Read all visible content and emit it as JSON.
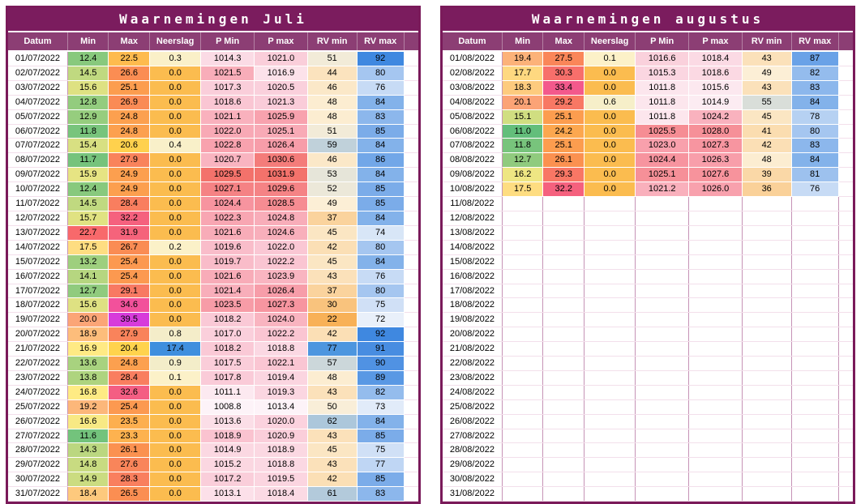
{
  "colors": {
    "frame": "#7A1A5A",
    "title_bg": "#7B1C5E",
    "header_bg": "#8C3E74",
    "header_text": "#FFFFFF",
    "cell_text": "#000000",
    "grid_h": "#F3DFEB",
    "grid_v": "#C693B6"
  },
  "scales": {
    "min": {
      "domain": [
        11.0,
        22.7
      ],
      "stops": [
        [
          0,
          "#63BE7B"
        ],
        [
          0.5,
          "#FFEB84"
        ],
        [
          1,
          "#F8696B"
        ]
      ]
    },
    "max": {
      "domain": [
        20.4,
        39.5
      ],
      "stops": [
        [
          0,
          "#FFD34D"
        ],
        [
          0.3,
          "#FB9150"
        ],
        [
          0.55,
          "#F66A6F"
        ],
        [
          0.75,
          "#F2509C"
        ],
        [
          1,
          "#D73BDB"
        ]
      ]
    },
    "neerslag": {
      "domain": [
        0,
        17.4
      ],
      "zero": "#FBBC4F",
      "stops": [
        [
          0,
          "#FDF2C8"
        ],
        [
          1,
          "#3F8FDE"
        ]
      ]
    },
    "pmin": {
      "domain": [
        1008.8,
        1029.5
      ],
      "stops": [
        [
          0,
          "#FDF3F8"
        ],
        [
          0.45,
          "#FACAD7"
        ],
        [
          0.75,
          "#F795A0"
        ],
        [
          1,
          "#F3726B"
        ]
      ]
    },
    "pmax": {
      "domain": [
        1013.4,
        1031.9
      ],
      "stops": [
        [
          0,
          "#FDF3F8"
        ],
        [
          0.45,
          "#FACAD7"
        ],
        [
          0.75,
          "#F795A0"
        ],
        [
          1,
          "#F3726B"
        ]
      ]
    },
    "rvmin": {
      "domain": [
        22,
        77
      ],
      "stops": [
        [
          0,
          "#F8B157"
        ],
        [
          0.5,
          "#FCF0D8"
        ],
        [
          1,
          "#4D96DF"
        ]
      ]
    },
    "rvmax": {
      "domain": [
        72,
        92
      ],
      "stops": [
        [
          0,
          "#E9F0FA"
        ],
        [
          1,
          "#3F88E0"
        ]
      ]
    }
  },
  "tables": [
    {
      "title": "Waarnemingen Juli",
      "columns": [
        "Datum",
        "Min",
        "Max",
        "Neerslag",
        "P Min",
        "P max",
        "RV min",
        "RV max"
      ],
      "rows": [
        [
          "01/07/2022",
          "12.4",
          "22.5",
          "0.3",
          "1014.3",
          "1021.0",
          "51",
          "92"
        ],
        [
          "02/07/2022",
          "14.5",
          "26.6",
          "0.0",
          "1021.5",
          "1016.9",
          "44",
          "80"
        ],
        [
          "03/07/2022",
          "15.6",
          "25.1",
          "0.0",
          "1017.3",
          "1020.5",
          "46",
          "76"
        ],
        [
          "04/07/2022",
          "12.8",
          "26.9",
          "0.0",
          "1018.6",
          "1021.3",
          "48",
          "84"
        ],
        [
          "05/07/2022",
          "12.9",
          "24.8",
          "0.0",
          "1021.1",
          "1025.9",
          "48",
          "83"
        ],
        [
          "06/07/2022",
          "11.8",
          "24.8",
          "0.0",
          "1022.0",
          "1025.1",
          "51",
          "85"
        ],
        [
          "07/07/2022",
          "15.4",
          "20.6",
          "0.4",
          "1022.8",
          "1026.4",
          "59",
          "84"
        ],
        [
          "08/07/2022",
          "11.7",
          "27.9",
          "0.0",
          "1020.7",
          "1030.6",
          "46",
          "86"
        ],
        [
          "09/07/2022",
          "15.9",
          "24.9",
          "0.0",
          "1029.5",
          "1031.9",
          "53",
          "84"
        ],
        [
          "10/07/2022",
          "12.4",
          "24.9",
          "0.0",
          "1027.1",
          "1029.6",
          "52",
          "85"
        ],
        [
          "11/07/2022",
          "14.5",
          "28.4",
          "0.0",
          "1024.4",
          "1028.5",
          "49",
          "85"
        ],
        [
          "12/07/2022",
          "15.7",
          "32.2",
          "0.0",
          "1022.3",
          "1024.8",
          "37",
          "84"
        ],
        [
          "13/07/2022",
          "22.7",
          "31.9",
          "0.0",
          "1021.6",
          "1024.6",
          "45",
          "74"
        ],
        [
          "14/07/2022",
          "17.5",
          "26.7",
          "0.2",
          "1019.6",
          "1022.0",
          "42",
          "80"
        ],
        [
          "15/07/2022",
          "13.2",
          "25.4",
          "0.0",
          "1019.7",
          "1022.2",
          "45",
          "84"
        ],
        [
          "16/07/2022",
          "14.1",
          "25.4",
          "0.0",
          "1021.6",
          "1023.9",
          "43",
          "76"
        ],
        [
          "17/07/2022",
          "12.7",
          "29.1",
          "0.0",
          "1021.4",
          "1026.4",
          "37",
          "80"
        ],
        [
          "18/07/2022",
          "15.6",
          "34.6",
          "0.0",
          "1023.5",
          "1027.3",
          "30",
          "75"
        ],
        [
          "19/07/2022",
          "20.0",
          "39.5",
          "0.0",
          "1018.2",
          "1024.0",
          "22",
          "72"
        ],
        [
          "20/07/2022",
          "18.9",
          "27.9",
          "0.8",
          "1017.0",
          "1022.2",
          "42",
          "92"
        ],
        [
          "21/07/2022",
          "16.9",
          "20.4",
          "17.4",
          "1018.2",
          "1018.8",
          "77",
          "91"
        ],
        [
          "22/07/2022",
          "13.6",
          "24.8",
          "0.9",
          "1017.5",
          "1022.1",
          "57",
          "90"
        ],
        [
          "23/07/2022",
          "13.8",
          "28.4",
          "0.1",
          "1017.8",
          "1019.4",
          "48",
          "89"
        ],
        [
          "24/07/2022",
          "16.8",
          "32.6",
          "0.0",
          "1011.1",
          "1019.3",
          "43",
          "82"
        ],
        [
          "25/07/2022",
          "19.2",
          "25.4",
          "0.0",
          "1008.8",
          "1013.4",
          "50",
          "73"
        ],
        [
          "26/07/2022",
          "16.6",
          "23.5",
          "0.0",
          "1013.6",
          "1020.0",
          "62",
          "84"
        ],
        [
          "27/07/2022",
          "11.6",
          "23.3",
          "0.0",
          "1018.9",
          "1020.9",
          "43",
          "85"
        ],
        [
          "28/07/2022",
          "14.3",
          "26.1",
          "0.0",
          "1014.9",
          "1018.9",
          "45",
          "75"
        ],
        [
          "29/07/2022",
          "14.8",
          "27.6",
          "0.0",
          "1015.2",
          "1018.8",
          "43",
          "77"
        ],
        [
          "30/07/2022",
          "14.9",
          "28.3",
          "0.0",
          "1017.2",
          "1019.5",
          "42",
          "85"
        ],
        [
          "31/07/2022",
          "18.4",
          "26.5",
          "0.0",
          "1013.1",
          "1018.4",
          "61",
          "83"
        ]
      ]
    },
    {
      "title": "Waarnemingen augustus",
      "columns": [
        "Datum",
        "Min",
        "Max",
        "Neerslag",
        "P Min",
        "P max",
        "RV min",
        "RV max"
      ],
      "rows": [
        [
          "01/08/2022",
          "19.4",
          "27.5",
          "0.1",
          "1016.6",
          "1018.4",
          "43",
          "87"
        ],
        [
          "02/08/2022",
          "17.7",
          "30.3",
          "0.0",
          "1015.3",
          "1018.6",
          "49",
          "82"
        ],
        [
          "03/08/2022",
          "18.3",
          "33.4",
          "0.0",
          "1011.8",
          "1015.6",
          "43",
          "83"
        ],
        [
          "04/08/2022",
          "20.1",
          "29.2",
          "0.6",
          "1011.8",
          "1014.9",
          "55",
          "84"
        ],
        [
          "05/08/2022",
          "15.1",
          "25.1",
          "0.0",
          "1011.8",
          "1024.2",
          "45",
          "78"
        ],
        [
          "06/08/2022",
          "11.0",
          "24.2",
          "0.0",
          "1025.5",
          "1028.0",
          "41",
          "80"
        ],
        [
          "07/08/2022",
          "11.8",
          "25.1",
          "0.0",
          "1023.0",
          "1027.3",
          "42",
          "83"
        ],
        [
          "08/08/2022",
          "12.7",
          "26.1",
          "0.0",
          "1024.4",
          "1026.3",
          "48",
          "84"
        ],
        [
          "09/08/2022",
          "16.2",
          "29.3",
          "0.0",
          "1025.1",
          "1027.6",
          "39",
          "81"
        ],
        [
          "10/08/2022",
          "17.5",
          "32.2",
          "0.0",
          "1021.2",
          "1026.0",
          "36",
          "76"
        ],
        [
          "11/08/2022",
          "",
          "",
          "",
          "",
          "",
          "",
          ""
        ],
        [
          "12/08/2022",
          "",
          "",
          "",
          "",
          "",
          "",
          ""
        ],
        [
          "13/08/2022",
          "",
          "",
          "",
          "",
          "",
          "",
          ""
        ],
        [
          "14/08/2022",
          "",
          "",
          "",
          "",
          "",
          "",
          ""
        ],
        [
          "15/08/2022",
          "",
          "",
          "",
          "",
          "",
          "",
          ""
        ],
        [
          "16/08/2022",
          "",
          "",
          "",
          "",
          "",
          "",
          ""
        ],
        [
          "17/08/2022",
          "",
          "",
          "",
          "",
          "",
          "",
          ""
        ],
        [
          "18/08/2022",
          "",
          "",
          "",
          "",
          "",
          "",
          ""
        ],
        [
          "19/08/2022",
          "",
          "",
          "",
          "",
          "",
          "",
          ""
        ],
        [
          "20/08/2022",
          "",
          "",
          "",
          "",
          "",
          "",
          ""
        ],
        [
          "21/08/2022",
          "",
          "",
          "",
          "",
          "",
          "",
          ""
        ],
        [
          "22/08/2022",
          "",
          "",
          "",
          "",
          "",
          "",
          ""
        ],
        [
          "23/08/2022",
          "",
          "",
          "",
          "",
          "",
          "",
          ""
        ],
        [
          "24/08/2022",
          "",
          "",
          "",
          "",
          "",
          "",
          ""
        ],
        [
          "25/08/2022",
          "",
          "",
          "",
          "",
          "",
          "",
          ""
        ],
        [
          "26/08/2022",
          "",
          "",
          "",
          "",
          "",
          "",
          ""
        ],
        [
          "27/08/2022",
          "",
          "",
          "",
          "",
          "",
          "",
          ""
        ],
        [
          "28/08/2022",
          "",
          "",
          "",
          "",
          "",
          "",
          ""
        ],
        [
          "29/08/2022",
          "",
          "",
          "",
          "",
          "",
          "",
          ""
        ],
        [
          "30/08/2022",
          "",
          "",
          "",
          "",
          "",
          "",
          ""
        ],
        [
          "31/08/2022",
          "",
          "",
          "",
          "",
          "",
          "",
          ""
        ]
      ]
    }
  ]
}
